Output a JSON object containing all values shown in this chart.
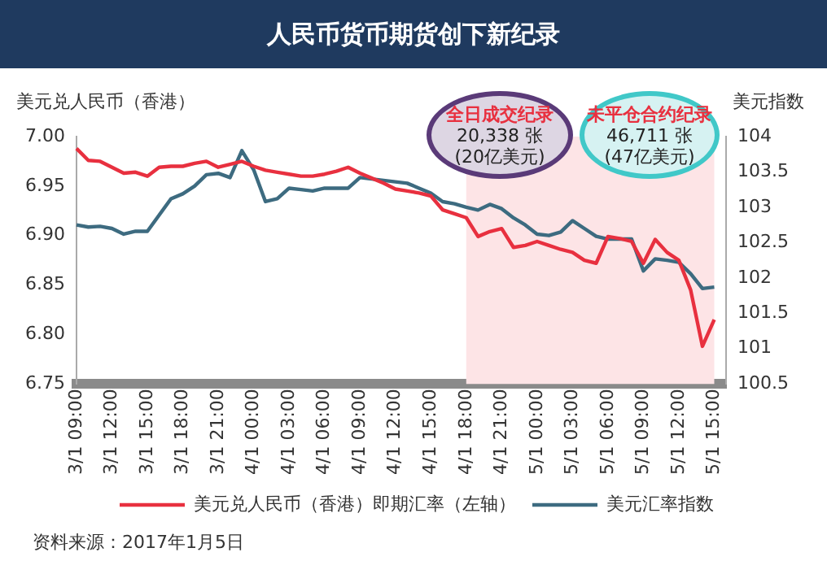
{
  "chart_data": {
    "type": "line",
    "title": "人民币货币期货创下新纪录",
    "ylabel": "美元兑人民币（香港）",
    "y2label": "美元指数",
    "categories": [
      "3/1 09:00",
      null,
      null,
      "3/1 12:00",
      null,
      null,
      "3/1 15:00",
      null,
      null,
      "3/1 18:00",
      null,
      null,
      "3/1 21:00",
      null,
      null,
      "4/1 00:00",
      null,
      null,
      "4/1 03:00",
      null,
      null,
      "4/1 06:00",
      null,
      null,
      "4/1 09:00",
      null,
      null,
      "4/1 12:00",
      null,
      null,
      "4/1 15:00",
      null,
      null,
      "4/1 18:00",
      null,
      null,
      "4/1 21:00",
      null,
      null,
      "5/1 00:00",
      null,
      null,
      "5/1 03:00",
      null,
      null,
      "5/1 06:00",
      null,
      null,
      "5/1 09:00",
      null,
      null,
      "5/1 12:00",
      null,
      null,
      "5/1 15:00",
      null
    ],
    "ylim": [
      6.75,
      7.0
    ],
    "yticks": [
      {
        "value": 6.75,
        "label": "6.75"
      },
      {
        "value": 6.8,
        "label": "6.80"
      },
      {
        "value": 6.85,
        "label": "6.85"
      },
      {
        "value": 6.9,
        "label": "6.90"
      },
      {
        "value": 6.95,
        "label": "6.95"
      },
      {
        "value": 7.0,
        "label": "7.00"
      }
    ],
    "y2lim": [
      100.5,
      104
    ],
    "y2ticks": [
      100.5,
      101,
      101.5,
      102,
      102.5,
      103,
      103.5,
      104
    ],
    "grid": false,
    "legend": "bottom",
    "marker": "none",
    "line_style": "solid",
    "bands": [
      {
        "axis": "x",
        "from": "4/1 18:00",
        "to": "5/1 15:00",
        "color": "#fde4e6"
      }
    ],
    "series": [
      {
        "name": "美元兑人民币（香港）即期汇率（左轴）",
        "color": "#e8303f",
        "values": [
          6.988,
          6.976,
          6.975,
          6.969,
          6.963,
          6.964,
          6.96,
          6.969,
          6.97,
          6.97,
          6.973,
          6.975,
          6.969,
          6.972,
          6.975,
          6.97,
          6.966,
          6.964,
          6.962,
          6.96,
          6.96,
          6.962,
          6.965,
          6.969,
          6.963,
          6.958,
          6.953,
          6.947,
          6.945,
          6.943,
          6.94,
          6.926,
          6.922,
          6.918,
          6.899,
          6.904,
          6.907,
          6.888,
          6.89,
          6.894,
          6.89,
          6.886,
          6.883,
          6.875,
          6.872,
          6.899,
          6.897,
          6.894,
          6.872,
          6.896,
          6.883,
          6.875,
          6.845,
          6.788,
          6.815,
          null
        ]
      },
      {
        "name": "美元汇率指数",
        "color": "#3d6b80",
        "axis": "y2",
        "values": [
          102.75,
          102.72,
          102.73,
          102.7,
          102.62,
          102.66,
          102.66,
          102.89,
          103.12,
          103.19,
          103.3,
          103.46,
          103.48,
          103.42,
          103.8,
          103.53,
          103.08,
          103.12,
          103.27,
          103.25,
          103.23,
          103.27,
          103.27,
          103.27,
          103.42,
          103.4,
          103.38,
          103.36,
          103.34,
          103.27,
          103.2,
          103.08,
          103.05,
          103.0,
          102.96,
          103.04,
          102.98,
          102.85,
          102.75,
          102.62,
          102.6,
          102.65,
          102.81,
          102.7,
          102.59,
          102.55,
          102.55,
          102.55,
          102.1,
          102.27,
          102.25,
          102.22,
          102.06,
          101.85,
          101.87,
          null
        ]
      }
    ],
    "annotations": [
      "全日成交纪录\n20,338 张\n(20亿美元)",
      "未平仓合约纪录\n46,711 张\n(47亿美元)",
      "资料来源：2017年1月5日"
    ]
  }
}
